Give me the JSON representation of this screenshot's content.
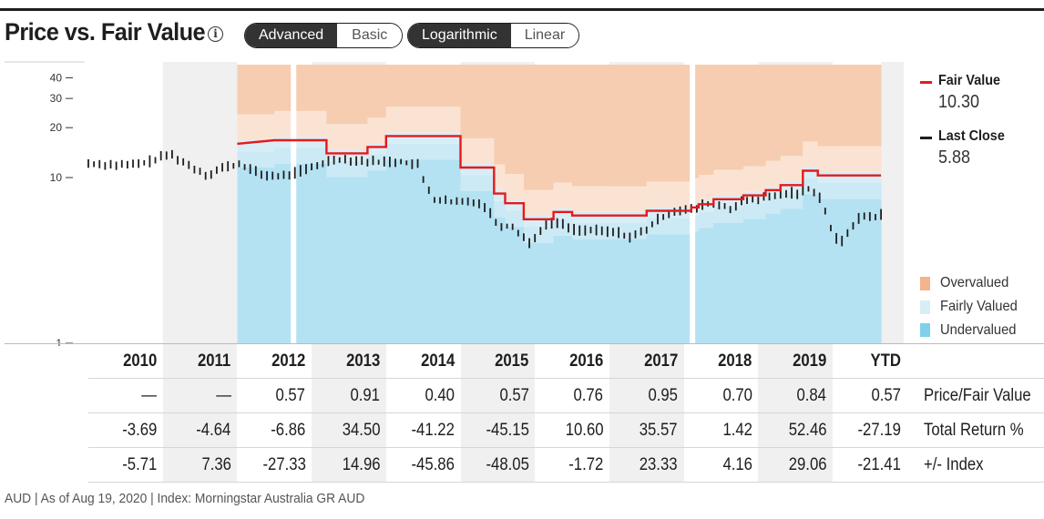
{
  "header": {
    "title": "Price vs. Fair Value",
    "info_icon": "info-circle-icon"
  },
  "toggles": {
    "view": {
      "options": [
        "Advanced",
        "Basic"
      ],
      "selected": "Advanced"
    },
    "scale": {
      "options": [
        "Logarithmic",
        "Linear"
      ],
      "selected": "Logarithmic"
    }
  },
  "legend": {
    "fair_value": {
      "label": "Fair Value",
      "value": "10.30",
      "color": "#e8191a"
    },
    "last_close": {
      "label": "Last Close",
      "value": "5.88",
      "color": "#1e1e1e"
    },
    "bands": [
      {
        "label": "Overvalued",
        "color": "#f3b48c"
      },
      {
        "label": "Fairly Valued",
        "color": "#d8eef7"
      },
      {
        "label": "Undervalued",
        "color": "#7fd0ec"
      }
    ]
  },
  "chart_data": {
    "type": "line",
    "y_scale": "log",
    "y_ticks": [
      {
        "value": 40,
        "label": "40"
      },
      {
        "value": 30,
        "label": "30"
      },
      {
        "value": 20,
        "label": "20"
      },
      {
        "value": 10,
        "label": "10"
      },
      {
        "value": 1,
        "label": "1"
      }
    ],
    "ylim": [
      1,
      48
    ],
    "x_periods": [
      "2010",
      "2011",
      "2012",
      "2013",
      "2014",
      "2015",
      "2016",
      "2017",
      "2018",
      "2019",
      "YTD"
    ],
    "series": [
      {
        "name": "Fair Value",
        "points": [
          {
            "t": 2.0,
            "v": 16.0
          },
          {
            "t": 2.5,
            "v": 16.8
          },
          {
            "t": 3.2,
            "v": 16.8
          },
          {
            "t": 3.2,
            "v": 14.0
          },
          {
            "t": 3.75,
            "v": 14.0
          },
          {
            "t": 3.75,
            "v": 15.3
          },
          {
            "t": 4.0,
            "v": 15.3
          },
          {
            "t": 4.0,
            "v": 17.8
          },
          {
            "t": 5.0,
            "v": 17.8
          },
          {
            "t": 5.0,
            "v": 11.5
          },
          {
            "t": 5.45,
            "v": 11.5
          },
          {
            "t": 5.45,
            "v": 8.0
          },
          {
            "t": 5.6,
            "v": 8.0
          },
          {
            "t": 5.6,
            "v": 7.0
          },
          {
            "t": 5.85,
            "v": 7.0
          },
          {
            "t": 5.85,
            "v": 5.6
          },
          {
            "t": 6.25,
            "v": 5.6
          },
          {
            "t": 6.25,
            "v": 6.2
          },
          {
            "t": 6.5,
            "v": 6.2
          },
          {
            "t": 6.5,
            "v": 5.9
          },
          {
            "t": 7.5,
            "v": 5.9
          },
          {
            "t": 7.5,
            "v": 6.3
          },
          {
            "t": 8.1,
            "v": 6.3
          },
          {
            "t": 8.1,
            "v": 6.6
          },
          {
            "t": 8.2,
            "v": 6.6
          },
          {
            "t": 8.2,
            "v": 6.9
          },
          {
            "t": 8.4,
            "v": 6.9
          },
          {
            "t": 8.4,
            "v": 7.4
          },
          {
            "t": 8.8,
            "v": 7.4
          },
          {
            "t": 8.8,
            "v": 7.8
          },
          {
            "t": 9.1,
            "v": 7.8
          },
          {
            "t": 9.1,
            "v": 8.4
          },
          {
            "t": 9.3,
            "v": 8.4
          },
          {
            "t": 9.3,
            "v": 9.0
          },
          {
            "t": 9.6,
            "v": 9.0
          },
          {
            "t": 9.6,
            "v": 11.0
          },
          {
            "t": 9.8,
            "v": 11.0
          },
          {
            "t": 9.8,
            "v": 10.3
          },
          {
            "t": 10.65,
            "v": 10.3
          }
        ]
      },
      {
        "name": "Last Close",
        "points": [
          {
            "t": 0.0,
            "v": 12.0
          },
          {
            "t": 0.3,
            "v": 11.8
          },
          {
            "t": 0.55,
            "v": 11.7
          },
          {
            "t": 0.8,
            "v": 12.2
          },
          {
            "t": 1.1,
            "v": 13.7
          },
          {
            "t": 1.3,
            "v": 12.0
          },
          {
            "t": 1.6,
            "v": 10.2
          },
          {
            "t": 1.8,
            "v": 11.3
          },
          {
            "t": 2.05,
            "v": 11.9
          },
          {
            "t": 2.3,
            "v": 10.3
          },
          {
            "t": 2.6,
            "v": 10.0
          },
          {
            "t": 2.8,
            "v": 10.6
          },
          {
            "t": 3.0,
            "v": 11.3
          },
          {
            "t": 3.3,
            "v": 12.8
          },
          {
            "t": 3.55,
            "v": 12.6
          },
          {
            "t": 3.8,
            "v": 12.3
          },
          {
            "t": 4.2,
            "v": 12.3
          },
          {
            "t": 4.45,
            "v": 11.7
          },
          {
            "t": 4.5,
            "v": 9.5
          },
          {
            "t": 4.65,
            "v": 7.3
          },
          {
            "t": 4.9,
            "v": 7.0
          },
          {
            "t": 5.2,
            "v": 7.1
          },
          {
            "t": 5.35,
            "v": 6.5
          },
          {
            "t": 5.5,
            "v": 5.1
          },
          {
            "t": 5.7,
            "v": 5.0
          },
          {
            "t": 5.85,
            "v": 4.3
          },
          {
            "t": 5.95,
            "v": 3.9
          },
          {
            "t": 6.1,
            "v": 5.0
          },
          {
            "t": 6.3,
            "v": 5.3
          },
          {
            "t": 6.5,
            "v": 4.8
          },
          {
            "t": 6.8,
            "v": 4.7
          },
          {
            "t": 7.1,
            "v": 4.6
          },
          {
            "t": 7.3,
            "v": 4.3
          },
          {
            "t": 7.5,
            "v": 4.8
          },
          {
            "t": 7.7,
            "v": 5.7
          },
          {
            "t": 7.9,
            "v": 6.3
          },
          {
            "t": 8.15,
            "v": 6.3
          },
          {
            "t": 8.3,
            "v": 6.9
          },
          {
            "t": 8.5,
            "v": 6.7
          },
          {
            "t": 8.65,
            "v": 6.4
          },
          {
            "t": 8.8,
            "v": 7.1
          },
          {
            "t": 9.0,
            "v": 7.3
          },
          {
            "t": 9.2,
            "v": 7.6
          },
          {
            "t": 9.4,
            "v": 8.0
          },
          {
            "t": 9.55,
            "v": 7.9
          },
          {
            "t": 9.7,
            "v": 8.6
          },
          {
            "t": 9.85,
            "v": 7.3
          },
          {
            "t": 10.0,
            "v": 4.5
          },
          {
            "t": 10.1,
            "v": 3.9
          },
          {
            "t": 10.25,
            "v": 5.0
          },
          {
            "t": 10.4,
            "v": 5.8
          },
          {
            "t": 10.55,
            "v": 5.7
          },
          {
            "t": 10.65,
            "v": 5.88
          }
        ]
      }
    ]
  },
  "table": {
    "years": [
      "2010",
      "2011",
      "2012",
      "2013",
      "2014",
      "2015",
      "2016",
      "2017",
      "2018",
      "2019",
      "YTD"
    ],
    "rows": [
      {
        "label": "Price/Fair Value",
        "values": [
          "—",
          "—",
          "0.57",
          "0.91",
          "0.40",
          "0.57",
          "0.76",
          "0.95",
          "0.70",
          "0.84",
          "0.57"
        ]
      },
      {
        "label": "Total Return %",
        "values": [
          "-3.69",
          "-4.64",
          "-6.86",
          "34.50",
          "-41.22",
          "-45.15",
          "10.60",
          "35.57",
          "1.42",
          "52.46",
          "-27.19"
        ]
      },
      {
        "label": "+/- Index",
        "values": [
          "-5.71",
          "7.36",
          "-27.33",
          "14.96",
          "-45.86",
          "-48.05",
          "-1.72",
          "23.33",
          "4.16",
          "29.06",
          "-21.41"
        ]
      }
    ]
  },
  "footnote": "AUD | As of Aug 19, 2020 | Index: Morningstar Australia GR AUD"
}
